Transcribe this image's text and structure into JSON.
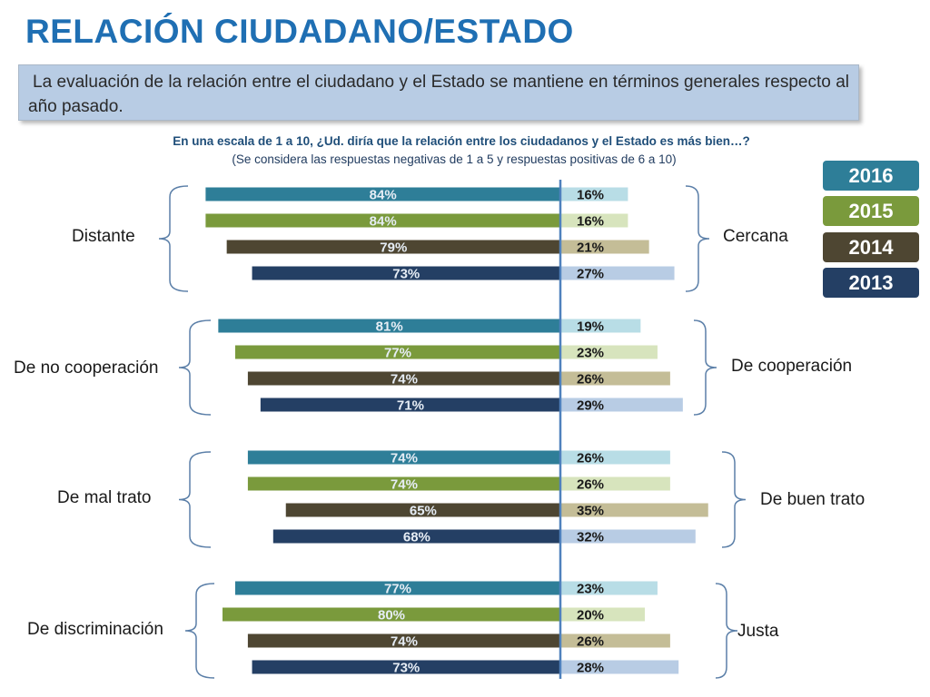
{
  "title": "RELACIÓN CIUDADANO/ESTADO",
  "summary": "La evaluación de la relación entre el ciudadano y el Estado se mantiene en términos generales respecto al año pasado.",
  "question": "En una escala de 1 a 10, ¿Ud. diría que la relación entre los ciudadanos y el Estado es más bien…?",
  "note": "(Se considera las respuestas negativas de 1 a 5 y respuestas positivas de 6 a 10)",
  "legend": [
    {
      "label": "2016",
      "color": "#2e7e98"
    },
    {
      "label": "2015",
      "color": "#7a9a3c"
    },
    {
      "label": "2014",
      "color": "#4e4632"
    },
    {
      "label": "2013",
      "color": "#243f64"
    }
  ],
  "chart_data": {
    "type": "bar",
    "orientation": "horizontal-diverging",
    "series_names": [
      "2016",
      "2015",
      "2014",
      "2013"
    ],
    "colors_negative": [
      "#2e7e98",
      "#7a9a3c",
      "#4e4632",
      "#243f64"
    ],
    "colors_positive": [
      "#b8dde6",
      "#d7e4bd",
      "#c4bd97",
      "#b8cce4"
    ],
    "groups": [
      {
        "negative_label": "Distante",
        "positive_label": "Cercana",
        "negative": [
          84,
          84,
          79,
          73
        ],
        "positive": [
          16,
          16,
          21,
          27
        ]
      },
      {
        "negative_label": "De no cooperación",
        "positive_label": "De cooperación",
        "negative": [
          81,
          77,
          74,
          71
        ],
        "positive": [
          19,
          23,
          26,
          29
        ]
      },
      {
        "negative_label": "De mal trato",
        "positive_label": "De buen trato",
        "negative": [
          74,
          74,
          65,
          68
        ],
        "positive": [
          26,
          26,
          35,
          32
        ]
      },
      {
        "negative_label": "De discriminación",
        "positive_label": "Justa",
        "negative": [
          77,
          80,
          74,
          73
        ],
        "positive": [
          23,
          20,
          26,
          28
        ]
      }
    ],
    "unit": "%"
  }
}
